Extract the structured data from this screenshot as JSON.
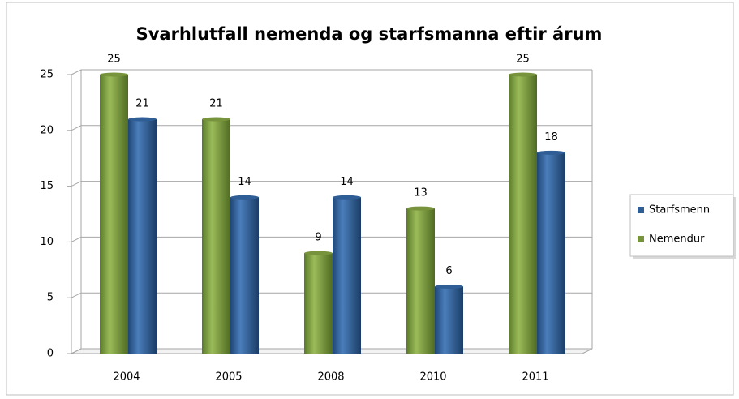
{
  "chart_data": {
    "type": "bar",
    "title": "Svarhlutfall  nemenda og starfsmanna eftir árum",
    "categories": [
      "2004",
      "2005",
      "2008",
      "2010",
      "2011"
    ],
    "series": [
      {
        "name": "Nemendur",
        "color": "#77933c",
        "values": [
          25,
          21,
          9,
          13,
          25
        ]
      },
      {
        "name": "Starfsmenn",
        "color": "#2f5d95",
        "values": [
          21,
          14,
          14,
          6,
          18
        ]
      }
    ],
    "ylim": [
      0,
      25
    ],
    "yticks": [
      0,
      5,
      10,
      15,
      20,
      25
    ],
    "grid": true,
    "legend": "right"
  }
}
